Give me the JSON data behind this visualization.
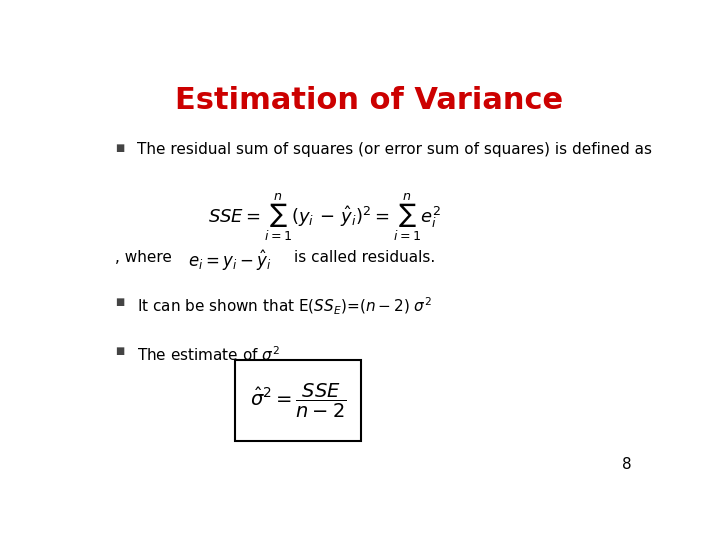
{
  "title": "Estimation of Variance",
  "title_color": "#cc0000",
  "title_fontsize": 22,
  "bg_color": "#ffffff",
  "bullet_color": "#444444",
  "text_color": "#000000",
  "page_number": "8",
  "line1_text": "The residual sum of squares (or error sum of squares) is defined as",
  "where_text": ", where",
  "where_suffix": "is called residuals.",
  "line3_text": "It can be shown that E(SS_E)=(n-2) σ²",
  "line4_text": "The estimate of σ²"
}
